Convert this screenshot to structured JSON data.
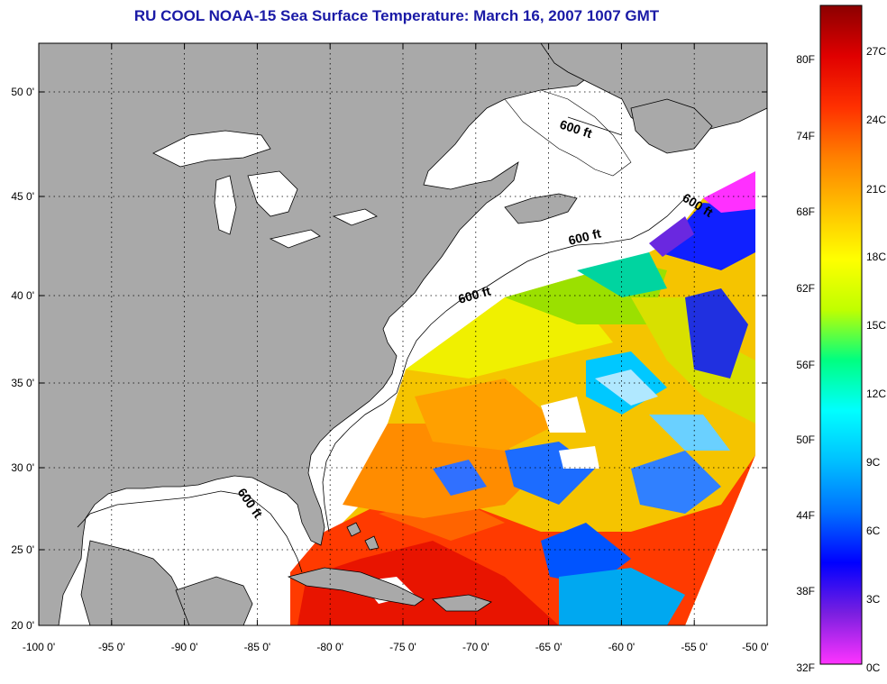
{
  "title": "RU COOL  NOAA-15  Sea Surface Temperature:  March 16, 2007 1007 GMT",
  "map": {
    "lon_labels": [
      "-100 0'",
      "-95 0'",
      "-90 0'",
      "-85 0'",
      "-80 0'",
      "-75 0'",
      "-70 0'",
      "-65 0'",
      "-60 0'",
      "-55 0'",
      "-50 0'"
    ],
    "lat_labels": [
      "50 0'",
      "45 0'",
      "40 0'",
      "35 0'",
      "30 0'",
      "25 0'",
      "20 0'"
    ],
    "contour_labels": [
      "600 ft",
      "600 ft",
      "600 ft",
      "600 ft",
      "600 ft"
    ],
    "colors": {
      "land": "#a9a9a9",
      "no_data": "#ffffff",
      "frame": "#000000",
      "grid": "#000000"
    }
  },
  "colorbar": {
    "fahrenheit_labels": [
      "80F",
      "74F",
      "68F",
      "62F",
      "56F",
      "50F",
      "44F",
      "38F",
      "32F"
    ],
    "celsius_labels": [
      "27C",
      "24C",
      "21C",
      "18C",
      "15C",
      "12C",
      "9C",
      "6C",
      "3C",
      "0C"
    ],
    "gradient": [
      "#ff33ff",
      "#7a1fe0",
      "#0000ff",
      "#0070ff",
      "#00c0ff",
      "#00ffff",
      "#00ff80",
      "#c0ff00",
      "#ffff00",
      "#ffc000",
      "#ff8000",
      "#ff3000",
      "#e00000",
      "#8b0000"
    ]
  }
}
